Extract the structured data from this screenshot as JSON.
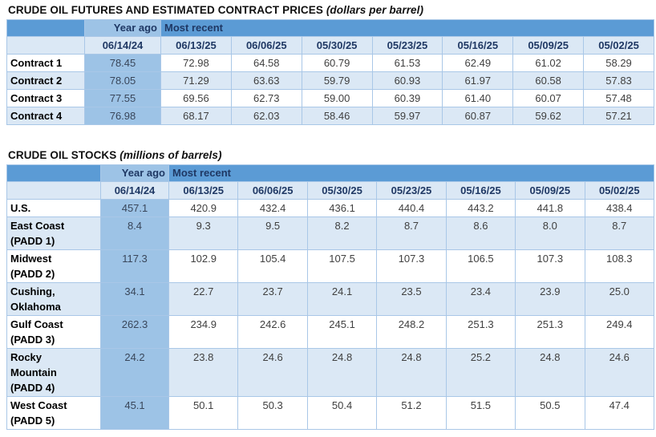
{
  "colors": {
    "header_blue": "#5b9bd5",
    "year_ago_blue": "#9dc3e6",
    "band_blue": "#dbe8f5",
    "grid_line": "#a9c7e7",
    "header_text": "#1f3864",
    "data_text": "#404040",
    "label_text": "#000000"
  },
  "tables": [
    {
      "title": "CRUDE OIL FUTURES AND ESTIMATED CONTRACT PRICES",
      "title_note": "(dollars per barrel)",
      "col_headers": {
        "year_ago": "Year ago",
        "most_recent": "Most recent"
      },
      "year_ago_date": "06/14/24",
      "dates": [
        "06/13/25",
        "06/06/25",
        "05/30/25",
        "05/23/25",
        "05/16/25",
        "05/09/25",
        "05/02/25"
      ],
      "rows": [
        {
          "label": "Contract 1",
          "year_ago": "78.45",
          "values": [
            "72.98",
            "64.58",
            "60.79",
            "61.53",
            "62.49",
            "61.02",
            "58.29"
          ]
        },
        {
          "label": "Contract 2",
          "year_ago": "78.05",
          "values": [
            "71.29",
            "63.63",
            "59.79",
            "60.93",
            "61.97",
            "60.58",
            "57.83"
          ]
        },
        {
          "label": "Contract 3",
          "year_ago": "77.55",
          "values": [
            "69.56",
            "62.73",
            "59.00",
            "60.39",
            "61.40",
            "60.07",
            "57.48"
          ]
        },
        {
          "label": "Contract 4",
          "year_ago": "76.98",
          "values": [
            "68.17",
            "62.03",
            "58.46",
            "59.97",
            "60.87",
            "59.62",
            "57.21"
          ]
        }
      ]
    },
    {
      "title": "CRUDE OIL STOCKS",
      "title_note": "(millions of barrels)",
      "col_headers": {
        "year_ago": "Year ago",
        "most_recent": "Most recent"
      },
      "year_ago_date": "06/14/24",
      "dates": [
        "06/13/25",
        "06/06/25",
        "05/30/25",
        "05/23/25",
        "05/16/25",
        "05/09/25",
        "05/02/25"
      ],
      "rows": [
        {
          "label": "U.S.",
          "year_ago": "457.1",
          "values": [
            "420.9",
            "432.4",
            "436.1",
            "440.4",
            "443.2",
            "441.8",
            "438.4"
          ]
        },
        {
          "label": "East Coast\n(PADD 1)",
          "year_ago": "8.4",
          "values": [
            "9.3",
            "9.5",
            "8.2",
            "8.7",
            "8.6",
            "8.0",
            "8.7"
          ]
        },
        {
          "label": "Midwest\n(PADD 2)",
          "year_ago": "117.3",
          "values": [
            "102.9",
            "105.4",
            "107.5",
            "107.3",
            "106.5",
            "107.3",
            "108.3"
          ]
        },
        {
          "label": "Cushing,\nOklahoma",
          "year_ago": "34.1",
          "values": [
            "22.7",
            "23.7",
            "24.1",
            "23.5",
            "23.4",
            "23.9",
            "25.0"
          ]
        },
        {
          "label": "Gulf Coast\n(PADD 3)",
          "year_ago": "262.3",
          "values": [
            "234.9",
            "242.6",
            "245.1",
            "248.2",
            "251.3",
            "251.3",
            "249.4"
          ]
        },
        {
          "label": "Rocky\nMountain\n(PADD 4)",
          "year_ago": "24.2",
          "values": [
            "23.8",
            "24.6",
            "24.8",
            "24.8",
            "25.2",
            "24.8",
            "24.6"
          ]
        },
        {
          "label": "West Coast\n(PADD 5)",
          "year_ago": "45.1",
          "values": [
            "50.1",
            "50.3",
            "50.4",
            "51.2",
            "51.5",
            "50.5",
            "47.4"
          ]
        }
      ]
    }
  ]
}
